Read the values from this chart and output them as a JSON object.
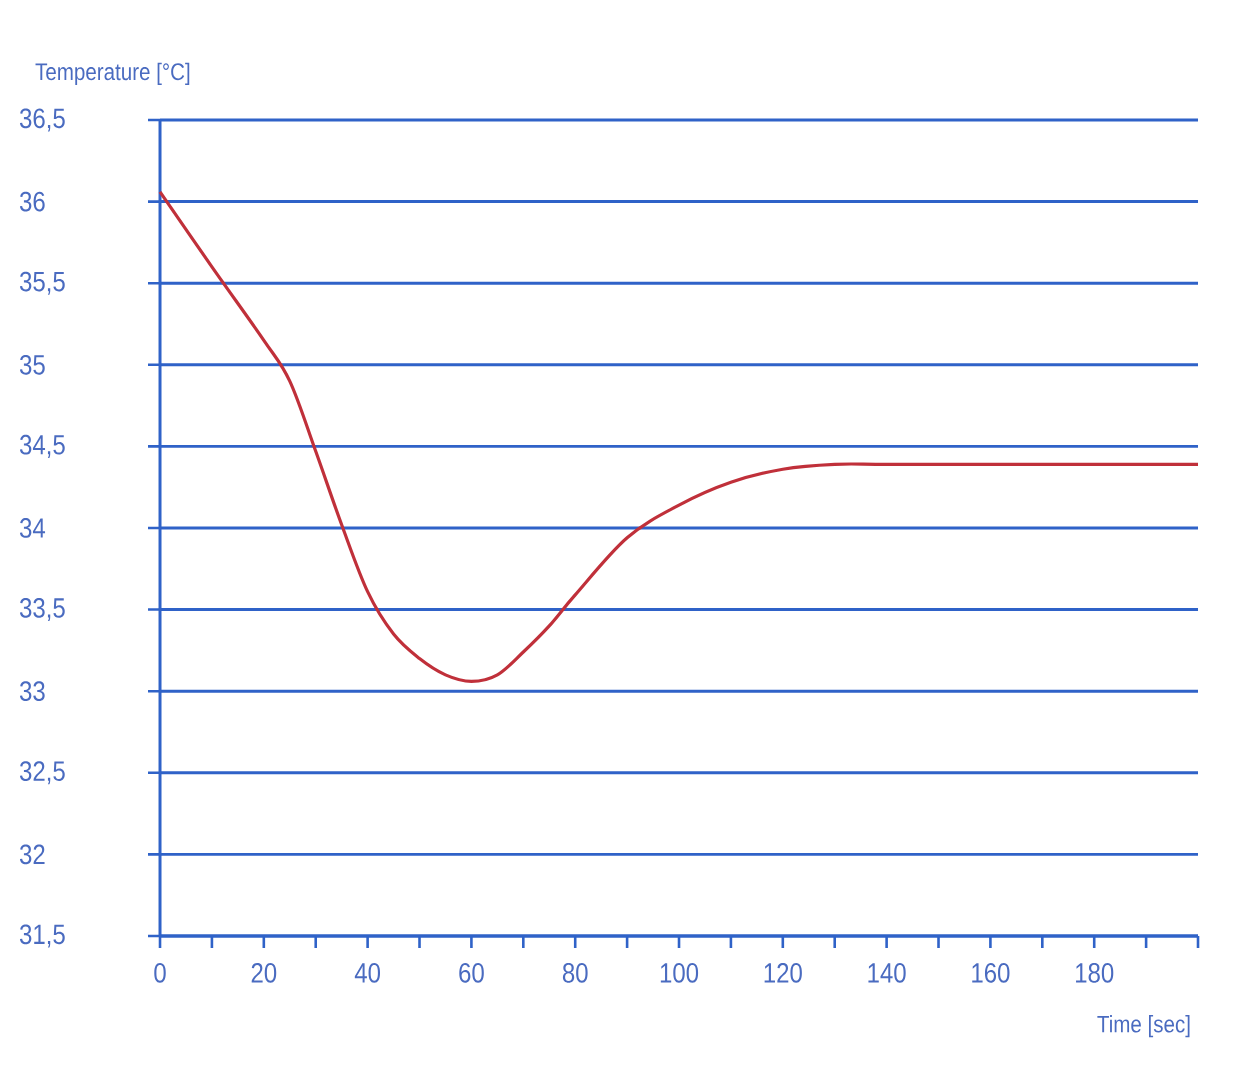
{
  "chart_data": {
    "type": "line",
    "xlabel": "Time [sec]",
    "ylabel": "Temperature  [°C]",
    "x": [
      0,
      10,
      20,
      25,
      30,
      35,
      40,
      45,
      50,
      55,
      60,
      65,
      70,
      75,
      80,
      90,
      100,
      110,
      120,
      130,
      140,
      160,
      180,
      200
    ],
    "series": [
      {
        "color": "#c0303a",
        "values": [
          36.06,
          35.6,
          35.15,
          34.9,
          34.47,
          34.02,
          33.61,
          33.35,
          33.2,
          33.1,
          33.06,
          33.1,
          33.24,
          33.4,
          33.59,
          33.94,
          34.14,
          34.28,
          34.36,
          34.39,
          34.39,
          34.39,
          34.39,
          34.39
        ]
      }
    ],
    "xlim": [
      0,
      200
    ],
    "xticks": [
      0,
      {
        "value": 10,
        "label": null
      },
      20,
      {
        "value": 30,
        "label": null
      },
      40,
      {
        "value": 50,
        "label": null
      },
      60,
      {
        "value": 70,
        "label": null
      },
      80,
      {
        "value": 90,
        "label": null
      },
      100,
      {
        "value": 110,
        "label": null
      },
      120,
      {
        "value": 130,
        "label": null
      },
      140,
      {
        "value": 150,
        "label": null
      },
      160,
      {
        "value": 170,
        "label": null
      },
      180,
      {
        "value": 190,
        "label": null
      },
      {
        "value": 200,
        "label": null
      }
    ],
    "ylim": [
      31.5,
      36.5
    ],
    "yticks": [
      {
        "value": 31.5,
        "label": "31,5"
      },
      32,
      {
        "value": 32.5,
        "label": "32,5"
      },
      33,
      {
        "value": 33.5,
        "label": "33,5"
      },
      34,
      {
        "value": 34.5,
        "label": "34,5"
      },
      35,
      {
        "value": 35.5,
        "label": "35,5"
      },
      36,
      {
        "value": 36.5,
        "label": "36,5"
      }
    ],
    "grid": "y",
    "marker": "none",
    "line_style": "solid"
  }
}
